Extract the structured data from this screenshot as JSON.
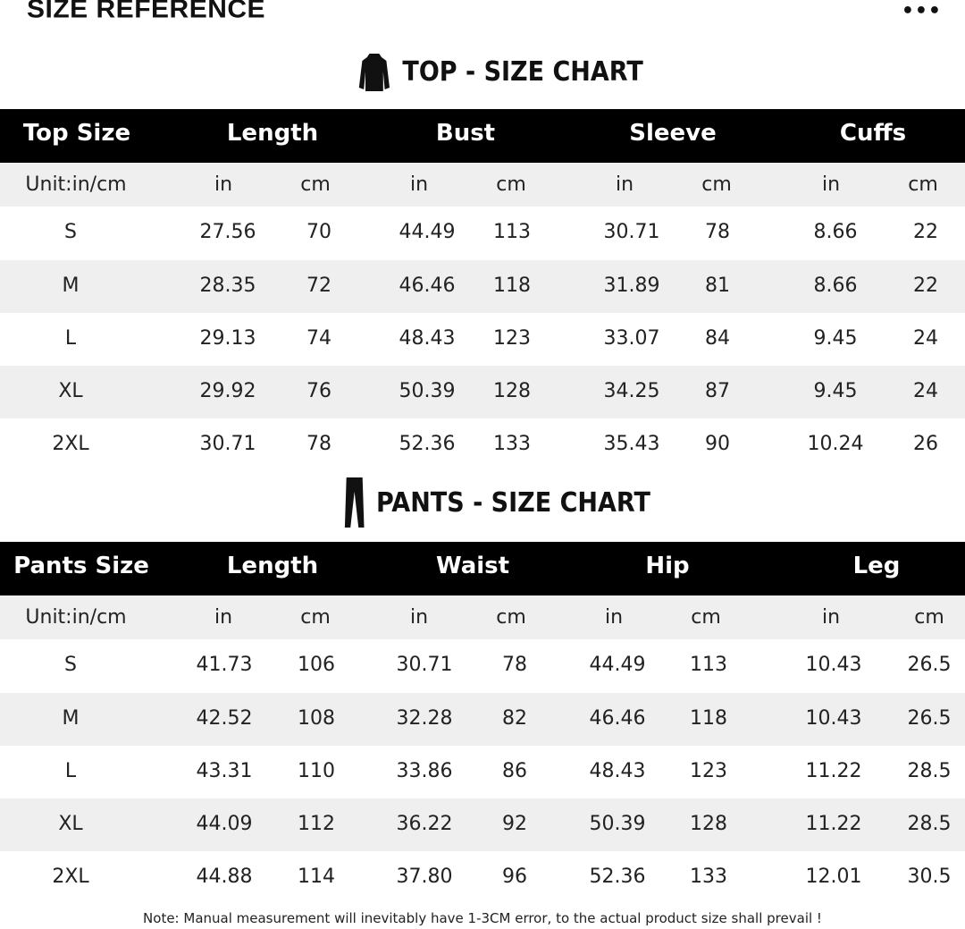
{
  "header": {
    "title": "SIZE REFERENCE",
    "more_icon": "ellipsis-icon",
    "more_label": "•••"
  },
  "top": {
    "title": "TOP - SIZE CHART",
    "icon": "jacket-icon",
    "columns": [
      "Top Size",
      "Length",
      "Bust",
      "Sleeve",
      "Cuffs"
    ],
    "units": [
      "Unit:in/cm",
      "in",
      "cm",
      "in",
      "cm",
      "in",
      "cm",
      "in",
      "cm"
    ],
    "rows": [
      [
        "S",
        "27.56",
        "70",
        "44.49",
        "113",
        "30.71",
        "78",
        "8.66",
        "22"
      ],
      [
        "M",
        "28.35",
        "72",
        "46.46",
        "118",
        "31.89",
        "81",
        "8.66",
        "22"
      ],
      [
        "L",
        "29.13",
        "74",
        "48.43",
        "123",
        "33.07",
        "84",
        "9.45",
        "24"
      ],
      [
        "XL",
        "29.92",
        "76",
        "50.39",
        "128",
        "34.25",
        "87",
        "9.45",
        "24"
      ],
      [
        "2XL",
        "30.71",
        "78",
        "52.36",
        "133",
        "35.43",
        "90",
        "10.24",
        "26"
      ]
    ]
  },
  "pants": {
    "title": "PANTS - SIZE CHART",
    "icon": "pants-icon",
    "columns": [
      "Pants Size",
      "Length",
      "Waist",
      "Hip",
      "Leg"
    ],
    "units": [
      "Unit:in/cm",
      "in",
      "cm",
      "in",
      "cm",
      "in",
      "cm",
      "in",
      "cm"
    ],
    "rows": [
      [
        "S",
        "41.73",
        "106",
        "30.71",
        "78",
        "44.49",
        "113",
        "10.43",
        "26.5"
      ],
      [
        "M",
        "42.52",
        "108",
        "32.28",
        "82",
        "46.46",
        "118",
        "10.43",
        "26.5"
      ],
      [
        "L",
        "43.31",
        "110",
        "33.86",
        "86",
        "48.43",
        "123",
        "11.22",
        "28.5"
      ],
      [
        "XL",
        "44.09",
        "112",
        "36.22",
        "92",
        "50.39",
        "128",
        "11.22",
        "28.5"
      ],
      [
        "2XL",
        "44.88",
        "114",
        "37.80",
        "96",
        "52.36",
        "133",
        "12.01",
        "30.5"
      ]
    ]
  },
  "note": "Note: Manual measurement will inevitably have 1-3CM error, to the actual product size shall prevail !"
}
